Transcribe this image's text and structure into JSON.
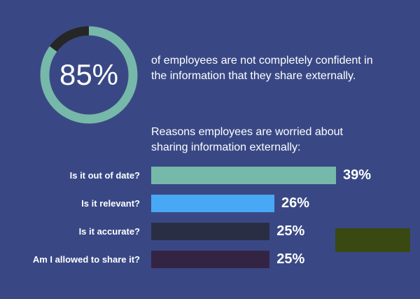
{
  "headline": {
    "value": "85%",
    "percent": 85,
    "text": "of employees are not completely confident in the information that they share externally.",
    "colors": {
      "filled": "#76b8aa",
      "remainder": "#262626"
    }
  },
  "chart_data": {
    "type": "bar",
    "title": "Reasons employees are worried about sharing information externally:",
    "categories": [
      "Is it out of date?",
      "Is it relevant?",
      "Is it accurate?",
      "Am I allowed to share it?"
    ],
    "values": [
      39,
      26,
      25,
      25
    ],
    "value_labels": [
      "39%",
      "26%",
      "25%",
      "25%"
    ],
    "colors": [
      "#76b8aa",
      "#48a8f5",
      "#2a2e44",
      "#342443"
    ],
    "orientation": "horizontal"
  },
  "decor_color": "#3a4812"
}
